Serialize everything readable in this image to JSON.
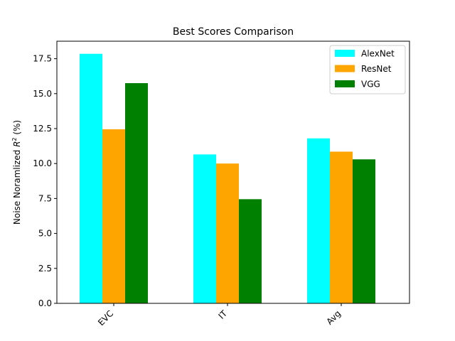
{
  "chart_data": {
    "type": "bar",
    "title": "Best Scores Comparison",
    "xlabel": "",
    "ylabel": {
      "prefix": "Noise Noramlized ",
      "var": "R",
      "sup": "2",
      "suffix": " (%)"
    },
    "categories": [
      "EVC",
      "IT",
      "Avg"
    ],
    "series": [
      {
        "name": "AlexNet",
        "color": "#00ffff",
        "values": [
          17.85,
          10.65,
          11.8
        ]
      },
      {
        "name": "ResNet",
        "color": "#ffa500",
        "values": [
          12.45,
          10.0,
          10.85
        ]
      },
      {
        "name": "VGG",
        "color": "#008000",
        "values": [
          15.75,
          7.45,
          10.3
        ]
      }
    ],
    "ylim": [
      0,
      18.75
    ],
    "yticks": [
      "0.0",
      "2.5",
      "5.0",
      "7.5",
      "10.0",
      "12.5",
      "15.0",
      "17.5"
    ],
    "grid": false,
    "legend_position": "top-right",
    "xtick_rotation": 45
  }
}
